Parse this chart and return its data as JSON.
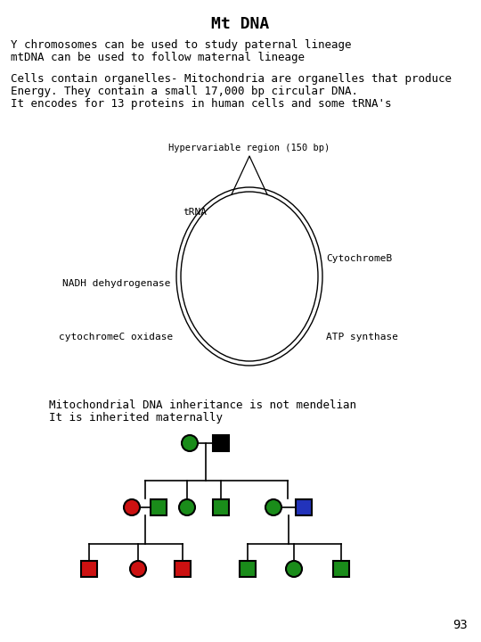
{
  "title": "Mt DNA",
  "line1": "Y chromosomes can be used to study paternal lineage",
  "line2": "mtDNA can be used to follow maternal lineage",
  "para_l1": "Cells contain organelles- Mitochondria are organelles that produce",
  "para_l2": "Energy. They contain a small 17,000 bp circular DNA.",
  "para_l3": "It encodes for 13 proteins in human cells and some tRNA's",
  "circle_label_top": "Hypervariable region (150 bp)",
  "circle_label_tRNA": "tRNA",
  "circle_label_CytB": "CytochromeB",
  "circle_label_NADH": "NADH dehydrogenase",
  "circle_label_cytC": "cytochromeC oxidase",
  "circle_label_ATP": "ATP synthase",
  "inherit_l1": "Mitochondrial DNA inheritance is not mendelian",
  "inherit_l2": "It is inherited maternally",
  "page_number": "93",
  "bg_color": "#ffffff",
  "text_color": "#000000",
  "green": "#1a8c1a",
  "red": "#cc1111",
  "blue": "#2233bb",
  "black": "#000000"
}
